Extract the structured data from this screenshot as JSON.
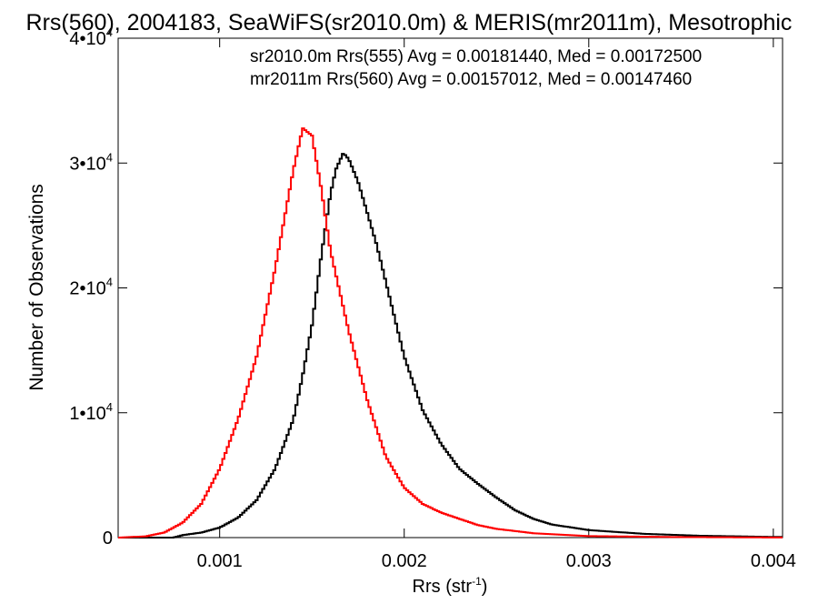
{
  "chart_data": {
    "type": "line",
    "title": "Rrs(560), 2004183, SeaWiFS(sr2010.0m) & MERIS(mr2011m), Mesotrophic",
    "xlabel": "Rrs (str",
    "xlabel_sup": "-1",
    "xlabel_close": ")",
    "ylabel": "Number of Observations",
    "xlim": [
      0.00045,
      0.00405
    ],
    "ylim": [
      0,
      40000
    ],
    "x_ticks": [
      {
        "value": 0.001,
        "label": "0.001"
      },
      {
        "value": 0.002,
        "label": "0.002"
      },
      {
        "value": 0.003,
        "label": "0.003"
      },
      {
        "value": 0.004,
        "label": "0.004"
      }
    ],
    "y_ticks": [
      {
        "value": 0,
        "mant": "0",
        "exp": ""
      },
      {
        "value": 10000,
        "mant": "1•10",
        "exp": "4"
      },
      {
        "value": 20000,
        "mant": "2•10",
        "exp": "4"
      },
      {
        "value": 30000,
        "mant": "3•10",
        "exp": "4"
      },
      {
        "value": 40000,
        "mant": "4•10",
        "exp": "4"
      }
    ],
    "annotations": [
      {
        "text": "sr2010.0m Rrs(555) Avg = 0.00181440, Med = 0.00172500",
        "color": "#000000"
      },
      {
        "text": "mr2011m Rrs(560) Avg = 0.00157012, Med = 0.00147460",
        "color": "#ff0000"
      }
    ],
    "series": [
      {
        "color": "#000000",
        "points": [
          [
            0.00075,
            0
          ],
          [
            0.0008,
            200
          ],
          [
            0.0009,
            400
          ],
          [
            0.001,
            800
          ],
          [
            0.0011,
            1600
          ],
          [
            0.0012,
            3000
          ],
          [
            0.0013,
            5500
          ],
          [
            0.0014,
            9500
          ],
          [
            0.00145,
            13000
          ],
          [
            0.0015,
            17000
          ],
          [
            0.00155,
            22500
          ],
          [
            0.0016,
            27500
          ],
          [
            0.00163,
            29500
          ],
          [
            0.00167,
            30800
          ],
          [
            0.0017,
            30300
          ],
          [
            0.00175,
            28500
          ],
          [
            0.0018,
            26000
          ],
          [
            0.00185,
            23500
          ],
          [
            0.0019,
            20500
          ],
          [
            0.00195,
            17500
          ],
          [
            0.002,
            14500
          ],
          [
            0.0021,
            10200
          ],
          [
            0.0022,
            7500
          ],
          [
            0.0023,
            5500
          ],
          [
            0.0024,
            4300
          ],
          [
            0.0025,
            3200
          ],
          [
            0.0026,
            2200
          ],
          [
            0.0027,
            1500
          ],
          [
            0.0028,
            1050
          ],
          [
            0.003,
            600
          ],
          [
            0.0033,
            300
          ],
          [
            0.0036,
            150
          ],
          [
            0.004,
            50
          ]
        ]
      },
      {
        "color": "#ff0000",
        "points": [
          [
            0.00045,
            0
          ],
          [
            0.0006,
            100
          ],
          [
            0.0007,
            400
          ],
          [
            0.0008,
            1200
          ],
          [
            0.0009,
            2700
          ],
          [
            0.001,
            5500
          ],
          [
            0.0011,
            9500
          ],
          [
            0.0012,
            14500
          ],
          [
            0.0013,
            21500
          ],
          [
            0.0014,
            29500
          ],
          [
            0.00145,
            32800
          ],
          [
            0.0015,
            32200
          ],
          [
            0.00155,
            28000
          ],
          [
            0.0016,
            23000
          ],
          [
            0.0017,
            16500
          ],
          [
            0.0018,
            11000
          ],
          [
            0.0019,
            6500
          ],
          [
            0.002,
            4000
          ],
          [
            0.0021,
            2700
          ],
          [
            0.0022,
            2000
          ],
          [
            0.0023,
            1500
          ],
          [
            0.0024,
            1000
          ],
          [
            0.0025,
            700
          ],
          [
            0.0027,
            350
          ],
          [
            0.003,
            120
          ],
          [
            0.0035,
            40
          ],
          [
            0.004,
            10
          ]
        ]
      }
    ]
  }
}
